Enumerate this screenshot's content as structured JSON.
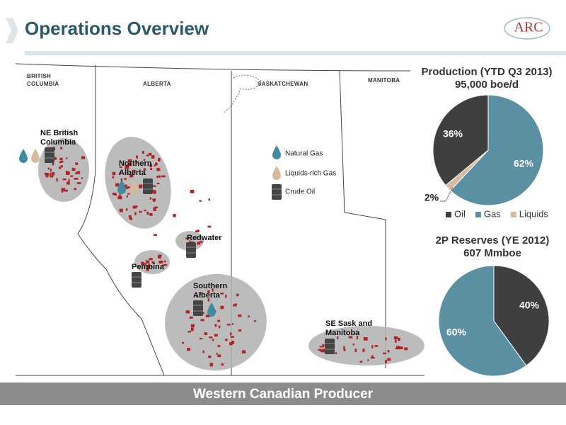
{
  "header": {
    "title": "Operations Overview",
    "logo": "ARC"
  },
  "map": {
    "provinces": [
      [
        "BRITISH",
        "COLUMBIA"
      ],
      [
        "ALBERTA"
      ],
      [
        "SASKATCHEWAN"
      ],
      [
        "MANITOBA"
      ]
    ],
    "regions": [
      [
        "NE British",
        "Columbia"
      ],
      [
        "Northern",
        "Alberta"
      ],
      [
        "Redwater"
      ],
      [
        "Pembina"
      ],
      [
        "Southern",
        "Alberta"
      ],
      [
        "SE Sask and",
        "Manitoba"
      ]
    ],
    "legend": [
      "Natural Gas",
      "Liquids-rich Gas",
      "Crude Oil"
    ]
  },
  "chart_data": [
    {
      "type": "pie",
      "title": "Production (YTD Q3 2013)",
      "subtitle": "95,000 boe/d",
      "categories": [
        "Oil",
        "Gas",
        "Liquids"
      ],
      "values": [
        36,
        62,
        2
      ],
      "value_labels": [
        "36%",
        "62%",
        "2%"
      ],
      "colors": [
        "#3f3f3f",
        "#5b8fa2",
        "#d9b99b"
      ],
      "legend": "bottom"
    },
    {
      "type": "pie",
      "title": "2P Reserves (YE 2012)",
      "subtitle": "607 Mmboe",
      "values": [
        40,
        60
      ],
      "value_labels": [
        "40%",
        "60%"
      ],
      "colors": [
        "#3f3f3f",
        "#5b8fa2"
      ]
    }
  ],
  "footer": "Western Canadian Producer"
}
